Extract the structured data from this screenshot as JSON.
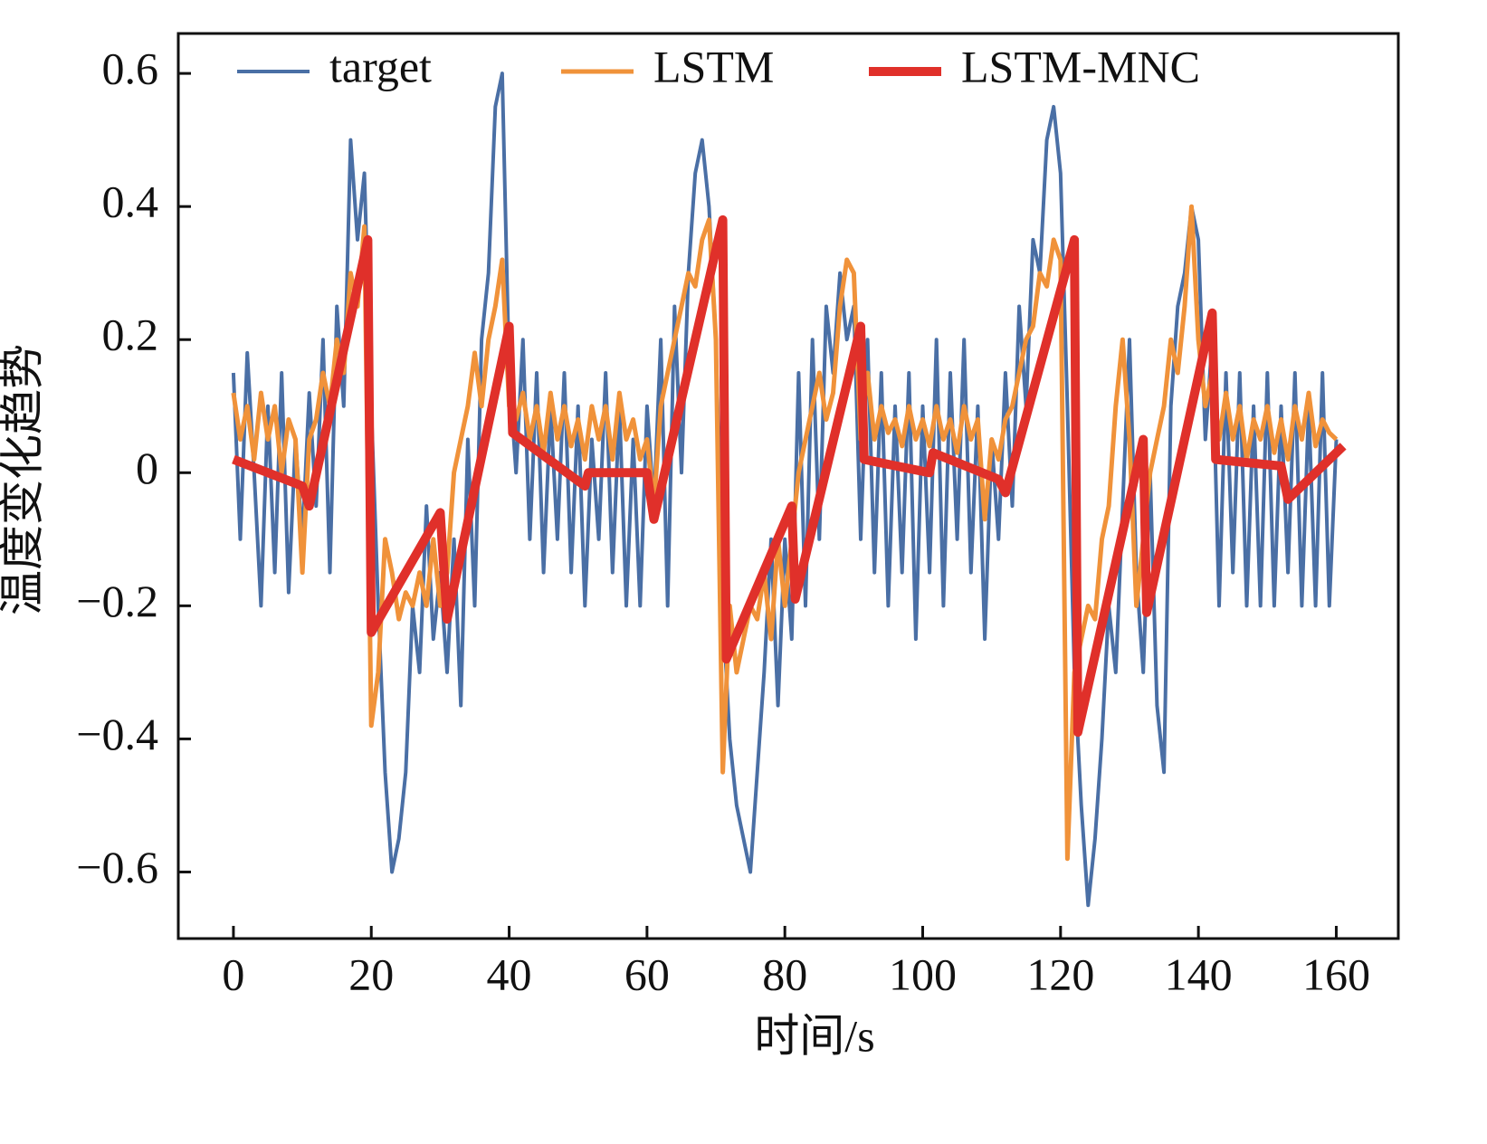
{
  "chart_data": {
    "type": "line",
    "xlabel": "时间/s",
    "ylabel": "温度变化趋势",
    "xlim": [
      -8,
      169
    ],
    "ylim": [
      -0.7,
      0.66
    ],
    "xticks": [
      0,
      20,
      40,
      60,
      80,
      100,
      120,
      140,
      160
    ],
    "yticks": [
      {
        "value": -0.6,
        "label": "−0.6"
      },
      {
        "value": -0.4,
        "label": "−0.4"
      },
      {
        "value": -0.2,
        "label": "−0.2"
      },
      0,
      0.2,
      0.4,
      0.6
    ],
    "legend": "top",
    "x": [
      0,
      1,
      2,
      3,
      4,
      5,
      6,
      7,
      8,
      9,
      10,
      11,
      12,
      13,
      14,
      15,
      16,
      17,
      18,
      19,
      20,
      21,
      22,
      23,
      24,
      25,
      26,
      27,
      28,
      29,
      30,
      31,
      32,
      33,
      34,
      35,
      36,
      37,
      38,
      39,
      40,
      41,
      42,
      43,
      44,
      45,
      46,
      47,
      48,
      49,
      50,
      51,
      52,
      53,
      54,
      55,
      56,
      57,
      58,
      59,
      60,
      61,
      62,
      63,
      64,
      65,
      66,
      67,
      68,
      69,
      70,
      71,
      72,
      73,
      74,
      75,
      76,
      77,
      78,
      79,
      80,
      81,
      82,
      83,
      84,
      85,
      86,
      87,
      88,
      89,
      90,
      91,
      92,
      93,
      94,
      95,
      96,
      97,
      98,
      99,
      100,
      101,
      102,
      103,
      104,
      105,
      106,
      107,
      108,
      109,
      110,
      111,
      112,
      113,
      114,
      115,
      116,
      117,
      118,
      119,
      120,
      121,
      122,
      123,
      124,
      125,
      126,
      127,
      128,
      129,
      130,
      131,
      132,
      133,
      134,
      135,
      136,
      137,
      138,
      139,
      140,
      141,
      142,
      143,
      144,
      145,
      146,
      147,
      148,
      149,
      150,
      151,
      152,
      153,
      154,
      155,
      156,
      157,
      158,
      159,
      160
    ],
    "series": [
      {
        "name": "target",
        "color": "#4a6fa5",
        "width": 4,
        "values": [
          0.15,
          -0.1,
          0.18,
          0.0,
          -0.2,
          0.1,
          -0.15,
          0.15,
          -0.18,
          0.05,
          -0.1,
          0.12,
          -0.05,
          0.2,
          -0.15,
          0.25,
          0.1,
          0.5,
          0.35,
          0.45,
          0.1,
          -0.2,
          -0.45,
          -0.6,
          -0.55,
          -0.45,
          -0.2,
          -0.3,
          -0.05,
          -0.25,
          -0.15,
          -0.3,
          -0.1,
          -0.35,
          0.05,
          -0.2,
          0.2,
          0.3,
          0.55,
          0.6,
          0.15,
          0.0,
          0.2,
          -0.1,
          0.15,
          -0.15,
          0.1,
          -0.1,
          0.15,
          -0.15,
          0.1,
          -0.2,
          0.05,
          -0.1,
          0.15,
          -0.15,
          0.1,
          -0.2,
          0.05,
          -0.2,
          0.1,
          -0.05,
          0.2,
          -0.2,
          0.25,
          0.0,
          0.3,
          0.45,
          0.5,
          0.4,
          0.2,
          -0.2,
          -0.4,
          -0.5,
          -0.55,
          -0.6,
          -0.45,
          -0.3,
          -0.1,
          -0.35,
          -0.1,
          -0.25,
          0.15,
          -0.2,
          0.2,
          -0.1,
          0.25,
          0.15,
          0.3,
          0.2,
          0.25,
          -0.1,
          0.2,
          -0.15,
          0.15,
          -0.2,
          0.1,
          -0.15,
          0.15,
          -0.25,
          0.1,
          -0.15,
          0.2,
          -0.2,
          0.15,
          -0.1,
          0.2,
          -0.15,
          0.1,
          -0.25,
          0.05,
          -0.1,
          0.15,
          -0.05,
          0.25,
          0.1,
          0.35,
          0.3,
          0.5,
          0.55,
          0.45,
          0.1,
          -0.3,
          -0.5,
          -0.65,
          -0.55,
          -0.4,
          -0.2,
          -0.3,
          -0.05,
          0.2,
          -0.15,
          -0.3,
          0.0,
          -0.35,
          -0.45,
          0.1,
          0.25,
          0.3,
          0.4,
          0.35,
          0.05,
          0.2,
          -0.2,
          0.15,
          -0.15,
          0.15,
          -0.2,
          0.1,
          -0.2,
          0.15,
          -0.2,
          0.1,
          -0.15,
          0.15,
          -0.2,
          0.1,
          -0.2,
          0.15,
          -0.2,
          0.05
        ]
      },
      {
        "name": "LSTM",
        "color": "#f0923a",
        "width": 5,
        "values": [
          0.12,
          0.05,
          0.1,
          0.02,
          0.12,
          0.05,
          0.1,
          0.0,
          0.08,
          0.05,
          -0.15,
          0.05,
          0.08,
          0.15,
          0.1,
          0.2,
          0.15,
          0.3,
          0.25,
          0.37,
          -0.38,
          -0.3,
          -0.1,
          -0.15,
          -0.22,
          -0.18,
          -0.2,
          -0.15,
          -0.2,
          -0.1,
          -0.2,
          -0.15,
          0.0,
          0.05,
          0.1,
          0.18,
          0.1,
          0.2,
          0.25,
          0.32,
          0.1,
          0.08,
          0.12,
          0.05,
          0.1,
          0.03,
          0.12,
          0.05,
          0.1,
          0.04,
          0.08,
          0.02,
          0.1,
          0.05,
          0.1,
          0.02,
          0.12,
          0.05,
          0.08,
          0.02,
          0.05,
          -0.05,
          0.1,
          0.15,
          0.2,
          0.25,
          0.3,
          0.28,
          0.35,
          0.38,
          0.2,
          -0.45,
          -0.2,
          -0.3,
          -0.25,
          -0.2,
          -0.22,
          -0.15,
          -0.25,
          -0.1,
          -0.2,
          -0.1,
          0.0,
          0.05,
          0.1,
          0.15,
          0.08,
          0.12,
          0.25,
          0.32,
          0.3,
          0.05,
          0.15,
          0.05,
          0.1,
          0.06,
          0.08,
          0.04,
          0.1,
          0.05,
          0.08,
          0.04,
          0.1,
          0.05,
          0.08,
          0.03,
          0.1,
          0.05,
          0.08,
          -0.07,
          0.05,
          0.02,
          0.08,
          0.1,
          0.15,
          0.2,
          0.22,
          0.3,
          0.28,
          0.35,
          0.32,
          -0.58,
          -0.3,
          -0.25,
          -0.2,
          -0.22,
          -0.1,
          -0.05,
          0.1,
          0.2,
          0.05,
          -0.2,
          -0.1,
          0.0,
          0.05,
          0.1,
          0.2,
          0.15,
          0.25,
          0.4,
          0.2,
          0.1,
          0.15,
          0.05,
          0.12,
          0.05,
          0.1,
          0.02,
          0.08,
          0.05,
          0.1,
          0.03,
          0.08,
          0.02,
          0.1,
          0.05,
          0.12,
          0.04,
          0.08,
          0.06,
          0.05
        ]
      },
      {
        "name": "LSTM-MNC",
        "color": "#e0302a",
        "width": 10,
        "x": [
          0,
          10,
          11,
          19.5,
          20,
          30,
          31,
          40,
          40.5,
          51,
          51.5,
          60,
          61,
          71,
          71.5,
          81,
          81.5,
          91,
          91.5,
          101,
          101.5,
          111,
          112,
          122,
          122.5,
          132,
          132.5,
          142,
          142.5,
          152,
          153,
          161
        ],
        "values": [
          0.02,
          -0.02,
          -0.05,
          0.35,
          -0.24,
          -0.06,
          -0.22,
          0.22,
          0.06,
          -0.02,
          0.0,
          0.0,
          -0.07,
          0.38,
          -0.28,
          -0.05,
          -0.19,
          0.22,
          0.02,
          0.0,
          0.03,
          -0.01,
          -0.03,
          0.35,
          -0.39,
          0.05,
          -0.21,
          0.24,
          0.02,
          0.01,
          -0.04,
          0.04
        ]
      }
    ]
  }
}
